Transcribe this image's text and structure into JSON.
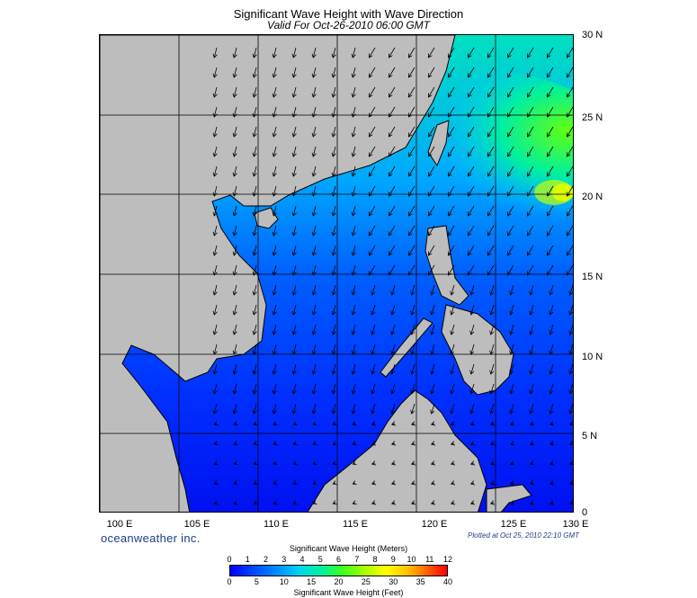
{
  "title": "Significant Wave Height with Wave Direction",
  "subtitle": "Valid For Oct-26-2010 06:00 GMT",
  "lat_labels": [
    "30 N",
    "25 N",
    "20 N",
    "15 N",
    "10 N",
    "5 N",
    "0"
  ],
  "lon_labels": [
    "100 E",
    "105 E",
    "110 E",
    "115 E",
    "120 E",
    "125 E",
    "130 E"
  ],
  "brand": "oceanweather inc.",
  "plotted": "Plotted at Oct 25, 2010 22:10 GMT",
  "colorbar": {
    "title_meters": "Significant Wave Height (Meters)",
    "title_feet": "Significant Wave Height (Feet)",
    "meter_ticks": [
      "0",
      "1",
      "2",
      "3",
      "4",
      "5",
      "6",
      "7",
      "8",
      "9",
      "10",
      "11",
      "12"
    ],
    "feet_ticks": [
      "0",
      "5",
      "10",
      "15",
      "20",
      "25",
      "30",
      "35",
      "40"
    ]
  },
  "colors": {
    "land": "#bdbdbd",
    "sea_low": "#0000ff",
    "sea_mid": "#00c8ff",
    "sea_high": "#40ff20",
    "peak": "#ffff00"
  }
}
